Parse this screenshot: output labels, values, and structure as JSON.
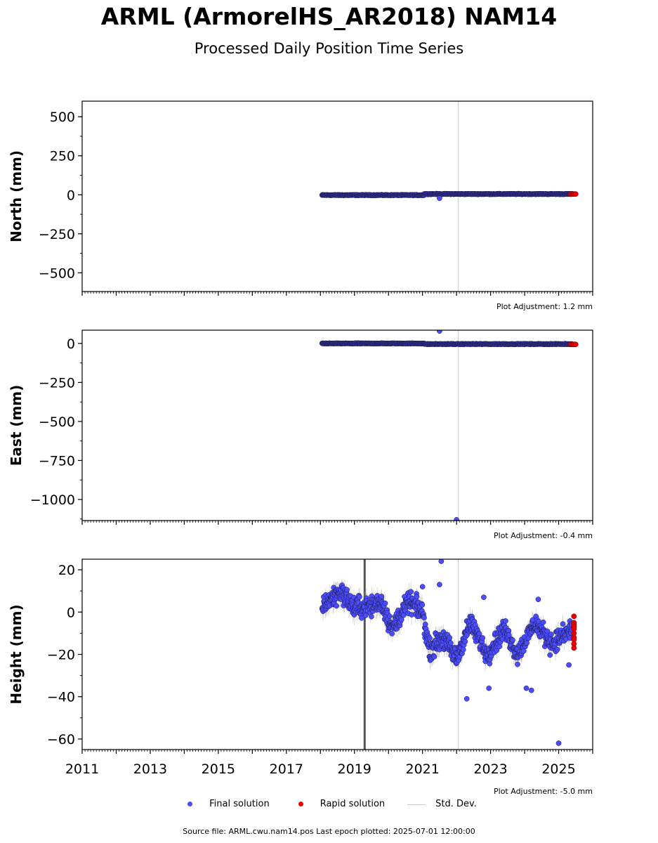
{
  "title": "ARML (ArmorelHS_AR2018) NAM14",
  "subtitle": "Processed Daily Position Time Series",
  "colors": {
    "final": "#4b4bff",
    "rapid": "#ee0000",
    "stddev": "#c8c8c8",
    "edge": "#1a1a40"
  },
  "legend": {
    "final": "Final solution",
    "rapid": "Rapid solution",
    "stddev": "Std. Dev."
  },
  "footer": {
    "source": "Source file: ARML.cwu.nam14.pos  Last epoch plotted: 2025-07-01 12:00:00"
  },
  "chart_data": [
    {
      "type": "scatter",
      "ylabel": "North (mm)",
      "xlim": [
        2011,
        2026
      ],
      "ylim": [
        -620,
        600
      ],
      "yticks": [
        500,
        250,
        0,
        -250,
        -500
      ],
      "ytick_labels": [
        "500",
        "250",
        "0",
        "−250",
        "−500"
      ],
      "adjustment": "Plot Adjustment: 1.2 mm",
      "segments": [
        {
          "x0": 2018.05,
          "x1": 2021.05,
          "y": -2,
          "spread": 3
        },
        {
          "x0": 2021.05,
          "x1": 2025.4,
          "y": 5,
          "spread": 3
        }
      ],
      "outliers": [
        {
          "x": 2021.5,
          "y": -22
        }
      ],
      "rapid": {
        "x0": 2025.35,
        "x1": 2025.5,
        "y": 5
      },
      "vline": 2022.05
    },
    {
      "type": "scatter",
      "ylabel": "East (mm)",
      "xlim": [
        2011,
        2026
      ],
      "ylim": [
        -1135,
        85
      ],
      "yticks": [
        0,
        -250,
        -500,
        -750,
        -1000
      ],
      "ytick_labels": [
        "0",
        "−250",
        "−500",
        "−750",
        "−1000"
      ],
      "adjustment": "Plot Adjustment: -0.4 mm",
      "segments": [
        {
          "x0": 2018.05,
          "x1": 2021.05,
          "y": 0,
          "spread": 3
        },
        {
          "x0": 2021.05,
          "x1": 2025.4,
          "y": -4,
          "spread": 3
        }
      ],
      "outliers": [
        {
          "x": 2021.5,
          "y": 80
        },
        {
          "x": 2022.0,
          "y": -1130
        }
      ],
      "rapid": {
        "x0": 2025.35,
        "x1": 2025.5,
        "y": -6
      },
      "vline": 2022.05
    },
    {
      "type": "scatter",
      "ylabel": "Height (mm)",
      "xlim": [
        2011,
        2026
      ],
      "ylim": [
        -65,
        25
      ],
      "yticks": [
        20,
        0,
        -20,
        -40,
        -60
      ],
      "ytick_labels": [
        "20",
        "0",
        "−20",
        "−40",
        "−60"
      ],
      "xticks": [
        2011,
        2013,
        2015,
        2017,
        2019,
        2021,
        2023,
        2025
      ],
      "xtick_labels": [
        "2011",
        "2013",
        "2015",
        "2017",
        "2019",
        "2021",
        "2023",
        "2025"
      ],
      "adjustment": "Plot Adjustment: -5.0 mm",
      "trend": [
        {
          "x": 2018.05,
          "y": 3
        },
        {
          "x": 2018.6,
          "y": 10
        },
        {
          "x": 2019.0,
          "y": 2
        },
        {
          "x": 2019.5,
          "y": 3
        },
        {
          "x": 2019.8,
          "y": 5
        },
        {
          "x": 2020.1,
          "y": -8
        },
        {
          "x": 2020.6,
          "y": 5
        },
        {
          "x": 2021.0,
          "y": 0
        },
        {
          "x": 2021.2,
          "y": -18
        },
        {
          "x": 2021.6,
          "y": -12
        },
        {
          "x": 2022.0,
          "y": -22
        },
        {
          "x": 2022.4,
          "y": -5
        },
        {
          "x": 2022.9,
          "y": -20
        },
        {
          "x": 2023.4,
          "y": -8
        },
        {
          "x": 2023.8,
          "y": -20
        },
        {
          "x": 2024.3,
          "y": -5
        },
        {
          "x": 2024.8,
          "y": -15
        },
        {
          "x": 2025.4,
          "y": -8
        }
      ],
      "spread": 7,
      "outliers": [
        {
          "x": 2021.55,
          "y": 24
        },
        {
          "x": 2021.5,
          "y": 13
        },
        {
          "x": 2021.0,
          "y": 12
        },
        {
          "x": 2022.3,
          "y": -41
        },
        {
          "x": 2022.95,
          "y": -36
        },
        {
          "x": 2024.05,
          "y": -36
        },
        {
          "x": 2024.2,
          "y": -37
        },
        {
          "x": 2025.0,
          "y": -62
        },
        {
          "x": 2024.4,
          "y": 6
        },
        {
          "x": 2025.3,
          "y": -25
        },
        {
          "x": 2022.8,
          "y": 7
        }
      ],
      "rapid": {
        "x": 2025.45,
        "values": [
          -2,
          -5,
          -6,
          -7,
          -8,
          -10,
          -12,
          -13,
          -15,
          -17
        ]
      },
      "vlines": [
        {
          "x": 2019.3,
          "style": "dark"
        },
        {
          "x": 2022.05,
          "style": "light"
        }
      ]
    }
  ]
}
